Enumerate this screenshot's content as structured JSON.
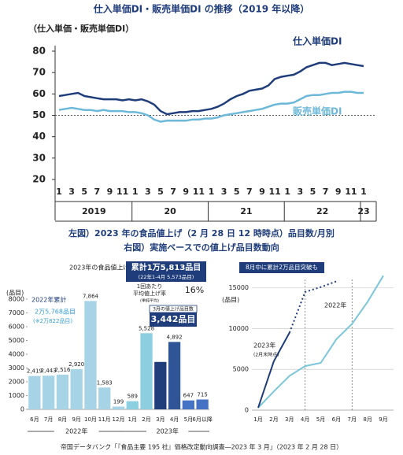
{
  "chart_data": [
    {
      "type": "line",
      "title": "仕入単価DI・販売単価DI の推移（2019 年以降）",
      "y_label": "（仕入単価・販売単価DI）",
      "categories": [
        "1",
        null,
        "3",
        null,
        "5",
        null,
        "7",
        null,
        "9",
        null,
        "11",
        null,
        "1",
        null,
        "3",
        null,
        "5",
        null,
        "7",
        null,
        "9",
        null,
        "11",
        null,
        "1",
        null,
        "3",
        null,
        "5",
        null,
        "7",
        null,
        "9",
        null,
        "11",
        null,
        "1",
        null,
        "3",
        null,
        "5",
        null,
        "7",
        null,
        "9",
        null,
        "11",
        null,
        "1"
      ],
      "year_labels": [
        "2019",
        "20",
        "21",
        "22",
        "23"
      ],
      "ylim": [
        20,
        80
      ],
      "yticks": [
        20,
        30,
        40,
        50,
        60,
        70,
        80
      ],
      "reference_line": 50,
      "series": [
        {
          "name": "仕入単価DI",
          "color": "#1f3d7a",
          "values": [
            59,
            59.5,
            60,
            60.5,
            59,
            58.5,
            58,
            57.5,
            57.5,
            57.5,
            57,
            57.5,
            57,
            57.5,
            56.5,
            55,
            52,
            50.5,
            51,
            51.5,
            51.5,
            52,
            52,
            52.5,
            53,
            54,
            55.5,
            57.5,
            59,
            60,
            61.5,
            62,
            62.5,
            64,
            67,
            68,
            68.5,
            69,
            70.5,
            72.5,
            73.5,
            74.5,
            74.5,
            73.5,
            74,
            74.5,
            74,
            73.5,
            73
          ]
        },
        {
          "name": "販売単価DI",
          "color": "#6cb8d8",
          "values": [
            52.5,
            53,
            53.5,
            53,
            52.5,
            52.5,
            52,
            52.5,
            52,
            52,
            52,
            51.5,
            51.5,
            51,
            50,
            48,
            47,
            47.5,
            47.5,
            47.5,
            47.5,
            48,
            48,
            48.5,
            48.5,
            49,
            50,
            50.5,
            51,
            51.5,
            52,
            52.5,
            53,
            54,
            55,
            55.5,
            55.5,
            56,
            57.5,
            59,
            59.5,
            59.5,
            60,
            60.5,
            60.5,
            61,
            61,
            60.5,
            60.5
          ]
        }
      ]
    },
    {
      "type": "bar",
      "title": "左図）2023 年の食品値上げ（2 月 28 日 12 時時点）品目数/月別",
      "y_label": "(品目)",
      "categories": [
        "6月",
        "7月",
        "8月",
        "9月",
        "10月",
        "11月",
        "12月",
        "1月",
        "2月",
        "3月",
        "4月",
        "5月",
        "6月以降"
      ],
      "values": [
        2419,
        2443,
        2516,
        2920,
        7864,
        1583,
        199,
        589,
        5528,
        3442,
        4892,
        647,
        715
      ],
      "value_labels": [
        "2,419",
        "2,443",
        "2,516",
        "2,920",
        "7,864",
        "1,583",
        "199",
        "589",
        "5,528",
        null,
        "4,892",
        "647",
        "715"
      ],
      "colors": [
        "#a6d3e6",
        "#a6d3e6",
        "#a6d3e6",
        "#a6d3e6",
        "#a6d3e6",
        "#a6d3e6",
        "#a6d3e6",
        "#8ccfe0",
        "#8ccfe0",
        "#1f3d7a",
        "#2f5597",
        "#4472c4",
        "#4472c4"
      ],
      "year_labels": [
        "2022年",
        "2023年"
      ],
      "ylim": [
        0,
        8000
      ],
      "yticks": [
        0,
        1000,
        2000,
        3000,
        4000,
        5000,
        6000,
        7000,
        8000
      ],
      "annotations": {
        "heading": "2023年の食品値上げ",
        "total": "累計1万5,813品目",
        "total_note": "(22年1-4月 5,573品目)",
        "rate_1": "1回あたり",
        "rate_2": "平均値上げ率",
        "rate_value": "16%",
        "rate_note": "(単純平均)",
        "march_head": "3月の値上げ品目数",
        "march_value": "3,442品目",
        "y2022_head": "2022年累計",
        "y2022_value": "2万5,768品目",
        "y2022_note": "(※2万822品目)"
      }
    },
    {
      "type": "line",
      "title": "右図）実施ベースでの値上げ品目数動向",
      "y_label": "(品目)",
      "annotation": "8月中に累計2万品目突破も",
      "categories": [
        "1月",
        "2月",
        "3月",
        "4月",
        "5月",
        "6月",
        "7月",
        "8月",
        "9月"
      ],
      "ylim": [
        0,
        17000
      ],
      "yticks": [
        0,
        5000,
        10000,
        15000
      ],
      "series": [
        {
          "name": "2022年",
          "color": "#7cc6da",
          "values": [
            300,
            2300,
            4200,
            5400,
            5800,
            8700,
            10600,
            13300,
            16500
          ]
        },
        {
          "name": "2023年",
          "note": "(2月末時点)",
          "color": "#1f3d7a",
          "dashed_from": 2,
          "values": [
            300,
            6000,
            9500,
            14500,
            15100,
            15800,
            null,
            null,
            null
          ]
        }
      ]
    }
  ],
  "footer": "帝国データバンク「『食品主要 195 社』価格改定動向調査―2023 年 3 月」（2023 年 2 月 28 日）"
}
